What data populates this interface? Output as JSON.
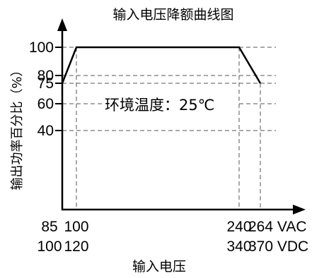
{
  "chart_data": {
    "type": "line",
    "title": "输入电压降额曲线图",
    "xlabel": "输入电压",
    "ylabel": "输出功率百分比（%）",
    "annotation": "环境温度：25℃",
    "x_ticks_row1": [
      "85",
      "100",
      "240",
      "264 VAC"
    ],
    "x_ticks_row2": [
      "100",
      "120",
      "340",
      "370 VDC"
    ],
    "y_ticks": [
      "100",
      "80",
      "75",
      "60",
      "40"
    ],
    "x_ac": [
      85,
      100,
      240,
      264
    ],
    "y": [
      75,
      100,
      100,
      75
    ],
    "grid": true,
    "legend": "none"
  }
}
